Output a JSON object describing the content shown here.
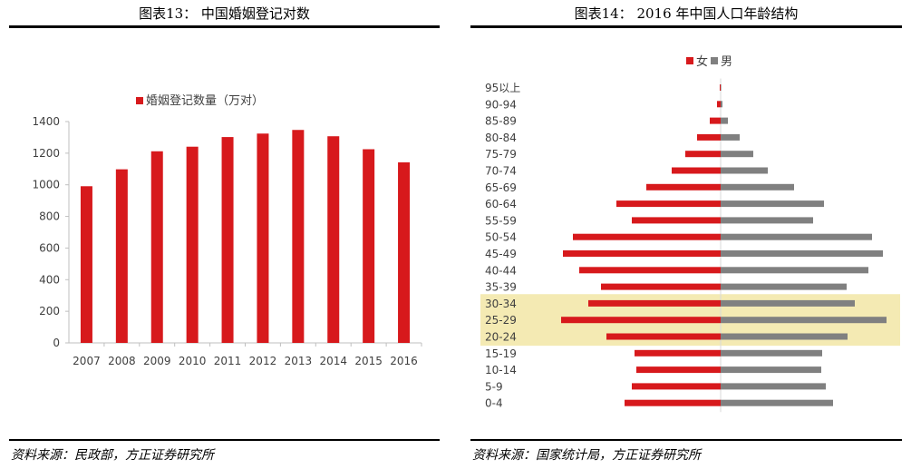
{
  "figures": {
    "left": {
      "title": "图表13：  中国婚姻登记对数",
      "source": "资料来源：民政部，方正证券研究所"
    },
    "right": {
      "title": "图表14：  2016 年中国人口年龄结构",
      "source": "资料来源：国家统计局，方正证券研究所"
    }
  },
  "chart_data": [
    {
      "type": "bar",
      "title": "",
      "legend": [
        "婚姻登记数量（万对）"
      ],
      "legend_position": "top",
      "categories": [
        "2007",
        "2008",
        "2009",
        "2010",
        "2011",
        "2012",
        "2013",
        "2014",
        "2015",
        "2016"
      ],
      "series": [
        {
          "name": "婚姻登记数量（万对）",
          "values": [
            991,
            1098,
            1212,
            1241,
            1302,
            1324,
            1347,
            1307,
            1225,
            1142
          ]
        }
      ],
      "yticks": [
        0,
        200,
        400,
        600,
        800,
        1000,
        1200,
        1400
      ],
      "ylim": [
        0,
        1400
      ],
      "grid": false,
      "colors": {
        "bar": "#d7191c",
        "axis": "#bfbfbf"
      }
    },
    {
      "type": "bar",
      "orientation": "horizontal-pyramid",
      "title": "",
      "legend": [
        "女",
        "男"
      ],
      "legend_position": "top",
      "categories": [
        "95以上",
        "90-94",
        "85-89",
        "80-84",
        "75-79",
        "70-74",
        "65-69",
        "60-64",
        "55-59",
        "50-54",
        "45-49",
        "40-44",
        "35-39",
        "30-34",
        "25-29",
        "20-24",
        "15-19",
        "10-14",
        "5-9",
        "0-4"
      ],
      "series": [
        {
          "name": "女",
          "values": [
            0.1,
            0.4,
            1.2,
            2.6,
            3.9,
            5.4,
            8.2,
            11.5,
            9.8,
            16.3,
            17.4,
            15.6,
            13.2,
            14.6,
            17.6,
            12.6,
            9.5,
            9.3,
            9.8,
            10.6
          ]
        },
        {
          "name": "男",
          "values": [
            0.05,
            0.2,
            0.8,
            2.1,
            3.6,
            5.2,
            8.1,
            11.4,
            10.2,
            16.7,
            17.9,
            16.3,
            13.9,
            14.8,
            18.3,
            14.0,
            11.2,
            11.1,
            11.6,
            12.4
          ]
        }
      ],
      "highlight_categories": [
        "30-34",
        "25-29",
        "20-24"
      ],
      "grid": false,
      "colors": {
        "female": "#d7191c",
        "male": "#808080",
        "highlight": "#f2e6a6"
      }
    }
  ]
}
